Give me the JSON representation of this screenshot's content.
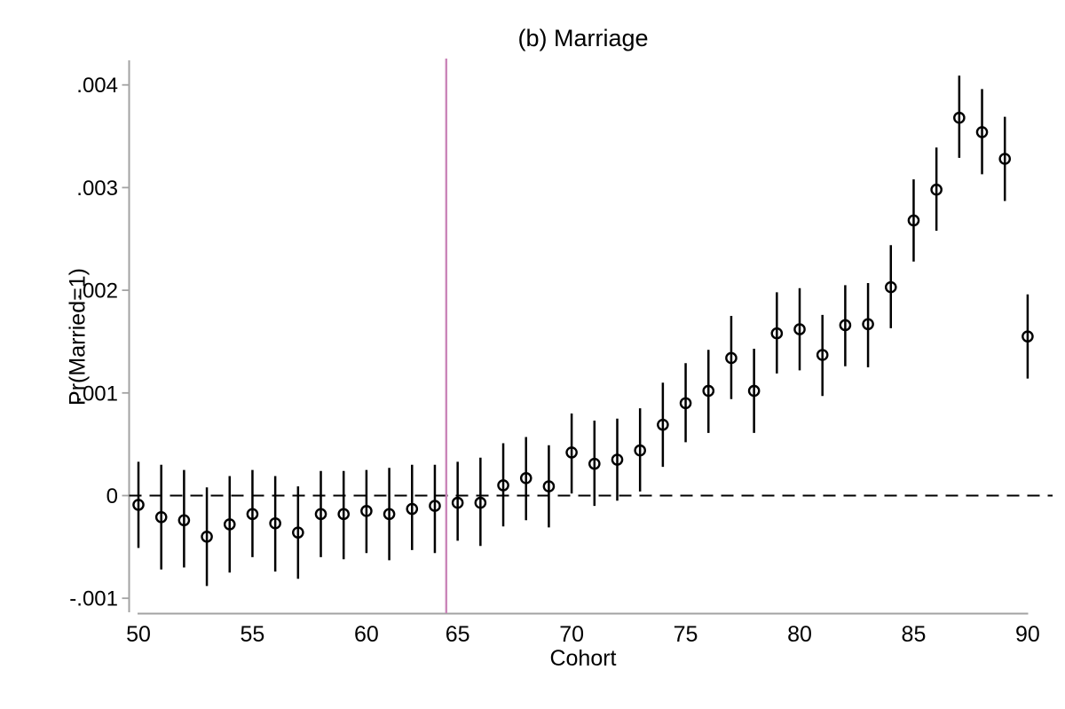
{
  "chart_data": {
    "type": "scatter",
    "subtype": "coefficient-plot-with-95ci",
    "title": "(b) Marriage",
    "xlabel": "Cohort",
    "ylabel": "Pr(Married=1)",
    "x_ticks": [
      50,
      55,
      60,
      65,
      70,
      75,
      80,
      85,
      90
    ],
    "y_ticks": [
      {
        "label": ".004",
        "value": 0.004
      },
      {
        "label": ".003",
        "value": 0.003
      },
      {
        "label": ".002",
        "value": 0.002
      },
      {
        "label": ".001",
        "value": 0.001
      },
      {
        "label": "0",
        "value": 0.0
      },
      {
        "label": "-.001",
        "value": -0.001
      }
    ],
    "ylim": [
      -0.001154,
      0.004258
    ],
    "x_axis_categorical": true,
    "omitted_reference_cohort": 64,
    "cutoff_line_between": [
      63,
      65
    ],
    "zero_reference_line": 0,
    "grid": false,
    "legend": "none",
    "colors": {
      "marker": "#000000",
      "ci_bar": "#000000",
      "cutoff_line": "#ca85b9",
      "axis_line": "#a3a3a3",
      "zero_dash_line": "#000000",
      "background": "#ffffff"
    },
    "series": [
      {
        "cohort": 50,
        "estimate": -9e-05,
        "ci_low": -0.00051,
        "ci_high": 0.00033
      },
      {
        "cohort": 51,
        "estimate": -0.00021,
        "ci_low": -0.00072,
        "ci_high": 0.0003
      },
      {
        "cohort": 52,
        "estimate": -0.00024,
        "ci_low": -0.0007,
        "ci_high": 0.00025
      },
      {
        "cohort": 53,
        "estimate": -0.0004,
        "ci_low": -0.00088,
        "ci_high": 8e-05
      },
      {
        "cohort": 54,
        "estimate": -0.00028,
        "ci_low": -0.00075,
        "ci_high": 0.00019
      },
      {
        "cohort": 55,
        "estimate": -0.00018,
        "ci_low": -0.0006,
        "ci_high": 0.00025
      },
      {
        "cohort": 56,
        "estimate": -0.00027,
        "ci_low": -0.00074,
        "ci_high": 0.00019
      },
      {
        "cohort": 57,
        "estimate": -0.00036,
        "ci_low": -0.00081,
        "ci_high": 9e-05
      },
      {
        "cohort": 58,
        "estimate": -0.00018,
        "ci_low": -0.0006,
        "ci_high": 0.00024
      },
      {
        "cohort": 59,
        "estimate": -0.00018,
        "ci_low": -0.00062,
        "ci_high": 0.00024
      },
      {
        "cohort": 60,
        "estimate": -0.00015,
        "ci_low": -0.00056,
        "ci_high": 0.00025
      },
      {
        "cohort": 61,
        "estimate": -0.00018,
        "ci_low": -0.00063,
        "ci_high": 0.00027
      },
      {
        "cohort": 62,
        "estimate": -0.00013,
        "ci_low": -0.00053,
        "ci_high": 0.0003
      },
      {
        "cohort": 63,
        "estimate": -0.0001,
        "ci_low": -0.00056,
        "ci_high": 0.0003
      },
      {
        "cohort": 65,
        "estimate": -7e-05,
        "ci_low": -0.00044,
        "ci_high": 0.00033
      },
      {
        "cohort": 66,
        "estimate": -7e-05,
        "ci_low": -0.00049,
        "ci_high": 0.00037
      },
      {
        "cohort": 67,
        "estimate": 0.0001,
        "ci_low": -0.0003,
        "ci_high": 0.00051
      },
      {
        "cohort": 68,
        "estimate": 0.00017,
        "ci_low": -0.00024,
        "ci_high": 0.00057
      },
      {
        "cohort": 69,
        "estimate": 9e-05,
        "ci_low": -0.00031,
        "ci_high": 0.00049
      },
      {
        "cohort": 70,
        "estimate": 0.00042,
        "ci_low": 2e-05,
        "ci_high": 0.0008
      },
      {
        "cohort": 71,
        "estimate": 0.00031,
        "ci_low": -0.0001,
        "ci_high": 0.00073
      },
      {
        "cohort": 72,
        "estimate": 0.00035,
        "ci_low": -5e-05,
        "ci_high": 0.00075
      },
      {
        "cohort": 73,
        "estimate": 0.00044,
        "ci_low": 4e-05,
        "ci_high": 0.00085
      },
      {
        "cohort": 74,
        "estimate": 0.00069,
        "ci_low": 0.00028,
        "ci_high": 0.0011
      },
      {
        "cohort": 75,
        "estimate": 0.0009,
        "ci_low": 0.00052,
        "ci_high": 0.00129
      },
      {
        "cohort": 76,
        "estimate": 0.00102,
        "ci_low": 0.00061,
        "ci_high": 0.00142
      },
      {
        "cohort": 77,
        "estimate": 0.00134,
        "ci_low": 0.00094,
        "ci_high": 0.00175
      },
      {
        "cohort": 78,
        "estimate": 0.00102,
        "ci_low": 0.00061,
        "ci_high": 0.00143
      },
      {
        "cohort": 79,
        "estimate": 0.00158,
        "ci_low": 0.00119,
        "ci_high": 0.00198
      },
      {
        "cohort": 80,
        "estimate": 0.00162,
        "ci_low": 0.00122,
        "ci_high": 0.00202
      },
      {
        "cohort": 81,
        "estimate": 0.00137,
        "ci_low": 0.00097,
        "ci_high": 0.00176
      },
      {
        "cohort": 82,
        "estimate": 0.00166,
        "ci_low": 0.00126,
        "ci_high": 0.00205
      },
      {
        "cohort": 83,
        "estimate": 0.00167,
        "ci_low": 0.00125,
        "ci_high": 0.00207
      },
      {
        "cohort": 84,
        "estimate": 0.00203,
        "ci_low": 0.00163,
        "ci_high": 0.00244
      },
      {
        "cohort": 85,
        "estimate": 0.00268,
        "ci_low": 0.00228,
        "ci_high": 0.00308
      },
      {
        "cohort": 86,
        "estimate": 0.00298,
        "ci_low": 0.00258,
        "ci_high": 0.00339
      },
      {
        "cohort": 87,
        "estimate": 0.00368,
        "ci_low": 0.00329,
        "ci_high": 0.00409
      },
      {
        "cohort": 88,
        "estimate": 0.00354,
        "ci_low": 0.00313,
        "ci_high": 0.00396
      },
      {
        "cohort": 89,
        "estimate": 0.00328,
        "ci_low": 0.00287,
        "ci_high": 0.00369
      },
      {
        "cohort": 90,
        "estimate": 0.00155,
        "ci_low": 0.00114,
        "ci_high": 0.00196
      }
    ]
  }
}
